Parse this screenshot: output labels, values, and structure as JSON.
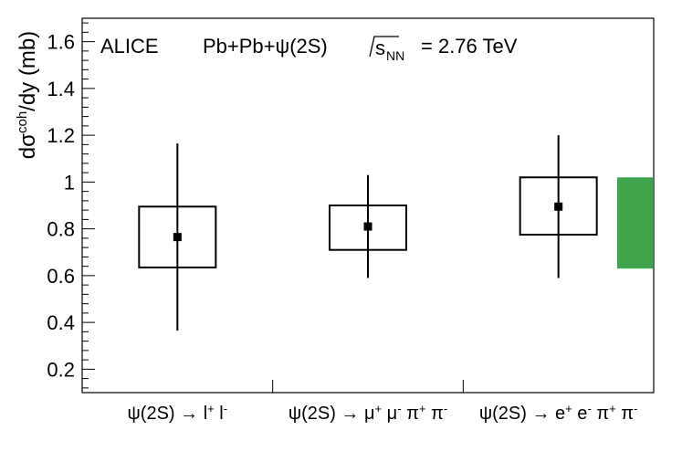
{
  "chart_data": {
    "type": "scatter",
    "ylabel_main": "dσ",
    "ylabel_sup": "coh",
    "ylabel_tail": "/dy (mb)",
    "ylim": [
      0.1,
      1.7
    ],
    "yticks": [
      0.2,
      0.4,
      0.6,
      0.8,
      1,
      1.2,
      1.4,
      1.6
    ],
    "yticklabels": [
      "0.2",
      "0.4",
      "0.6",
      "0.8",
      "1",
      "1.2",
      "1.4",
      "1.6"
    ],
    "header": {
      "experiment": "ALICE",
      "system": "Pb+Pb+ψ(2S)",
      "energy_sym": "s",
      "energy_sub": "NN",
      "energy_value": "= 2.76 TeV"
    },
    "categories": [
      {
        "base": "ψ(2S) → l",
        "parts": [
          {
            "t": "ψ(2S) → l"
          },
          {
            "t": "+",
            "sup": true
          },
          {
            "t": " l"
          },
          {
            "t": "-",
            "sup": true
          }
        ]
      },
      {
        "base": "ψ(2S) → μ",
        "parts": [
          {
            "t": "ψ(2S) → μ"
          },
          {
            "t": "+",
            "sup": true
          },
          {
            "t": " μ"
          },
          {
            "t": "-",
            "sup": true
          },
          {
            "t": " π"
          },
          {
            "t": "+",
            "sup": true
          },
          {
            "t": " π"
          },
          {
            "t": "-",
            "sup": true
          }
        ]
      },
      {
        "base": "ψ(2S) → e",
        "parts": [
          {
            "t": "ψ(2S) → e"
          },
          {
            "t": "+",
            "sup": true
          },
          {
            "t": " e"
          },
          {
            "t": "-",
            "sup": true
          },
          {
            "t": " π"
          },
          {
            "t": "+",
            "sup": true
          },
          {
            "t": " π"
          },
          {
            "t": "-",
            "sup": true
          }
        ]
      }
    ],
    "points": [
      {
        "value": 0.765,
        "stat_low": 0.365,
        "stat_high": 1.165,
        "sys_low": 0.635,
        "sys_high": 0.895
      },
      {
        "value": 0.81,
        "stat_low": 0.59,
        "stat_high": 1.03,
        "sys_low": 0.71,
        "sys_high": 0.9
      },
      {
        "value": 0.895,
        "stat_low": 0.59,
        "stat_high": 1.2,
        "sys_low": 0.775,
        "sys_high": 1.02
      }
    ],
    "correlated_band": {
      "low": 0.63,
      "high": 1.02,
      "color": "#2a9a3a"
    },
    "colors": {
      "marker": "#000000",
      "band": "#2a9a3a"
    }
  }
}
